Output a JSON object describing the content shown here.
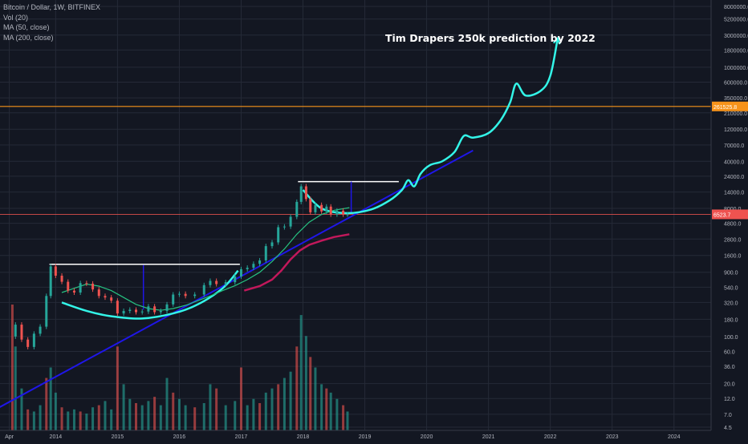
{
  "chart_data": {
    "type": "line",
    "title": "Bitcoin / Dollar, 1W, BITFINEX",
    "indicators": [
      "Vol (20)",
      "MA (50, close)",
      "MA (200, close)"
    ],
    "annotation": "Tim Drapers 250k prediction by 2022",
    "scale": "log",
    "ylim": [
      4.5,
      8000000
    ],
    "xlim": [
      2013.1,
      2024.6
    ],
    "x_tick_labels": [
      "Apr",
      "2014",
      "2015",
      "2016",
      "2017",
      "2018",
      "2019",
      "2020",
      "2021",
      "2022",
      "2023",
      "2024"
    ],
    "x_tick_values": [
      2013.25,
      2014,
      2015,
      2016,
      2017,
      2018,
      2019,
      2020,
      2021,
      2022,
      2023,
      2024
    ],
    "y_tick_labels": [
      "8000000.0",
      "5200000.0",
      "3000000.0",
      "1800000.0",
      "1000000.0",
      "600000.0",
      "350000.0",
      "210000.0",
      "120000.0",
      "70000.0",
      "40000.0",
      "24000.0",
      "14000.0",
      "8000.0",
      "4800.0",
      "2800.0",
      "1600.0",
      "900.0",
      "540.0",
      "320.0",
      "180.0",
      "100.0",
      "60.0",
      "36.0",
      "20.0",
      "12.0",
      "7.0",
      "4.5"
    ],
    "y_tick_values": [
      8000000,
      5200000,
      3000000,
      1800000,
      1000000,
      600000,
      350000,
      210000,
      120000,
      70000,
      40000,
      24000,
      14000,
      8000,
      4800,
      2800,
      1600,
      900,
      540,
      320,
      180,
      100,
      60,
      36,
      20,
      12,
      7,
      4.5
    ],
    "price_label": "6523.7",
    "price_value": 6523.7,
    "level_label": "261525.8",
    "level_value": 261525.8,
    "colors": {
      "background": "#131722",
      "grid": "#252a37",
      "up": "#26a69a",
      "down": "#ef5350",
      "ma50": "#26c281",
      "ma200": "#c2185b",
      "trend": "#1f16e8",
      "projection": "#33f5e8",
      "level": "#f7931a",
      "price": "#ef5350",
      "white": "#ffffff",
      "axis_text": "#b2b5be"
    },
    "series": [
      {
        "name": "Bitcoin / Dollar",
        "values": [
          [
            2013.3,
            100
          ],
          [
            2013.35,
            150
          ],
          [
            2013.45,
            90
          ],
          [
            2013.55,
            70
          ],
          [
            2013.65,
            110
          ],
          [
            2013.75,
            140
          ],
          [
            2013.85,
            400
          ],
          [
            2013.92,
            1100
          ],
          [
            2014.0,
            800
          ],
          [
            2014.1,
            650
          ],
          [
            2014.2,
            480
          ],
          [
            2014.3,
            450
          ],
          [
            2014.4,
            620
          ],
          [
            2014.5,
            610
          ],
          [
            2014.6,
            500
          ],
          [
            2014.7,
            400
          ],
          [
            2014.8,
            380
          ],
          [
            2014.9,
            340
          ],
          [
            2015.0,
            220
          ],
          [
            2015.1,
            240
          ],
          [
            2015.2,
            250
          ],
          [
            2015.3,
            230
          ],
          [
            2015.4,
            235
          ],
          [
            2015.5,
            280
          ],
          [
            2015.6,
            230
          ],
          [
            2015.7,
            240
          ],
          [
            2015.8,
            300
          ],
          [
            2015.9,
            420
          ],
          [
            2016.0,
            430
          ],
          [
            2016.1,
            400
          ],
          [
            2016.25,
            420
          ],
          [
            2016.4,
            580
          ],
          [
            2016.5,
            670
          ],
          [
            2016.6,
            600
          ],
          [
            2016.75,
            640
          ],
          [
            2016.9,
            780
          ],
          [
            2017.0,
            1000
          ],
          [
            2017.1,
            1050
          ],
          [
            2017.2,
            1200
          ],
          [
            2017.3,
            1350
          ],
          [
            2017.4,
            2200
          ],
          [
            2017.5,
            2500
          ],
          [
            2017.6,
            4200
          ],
          [
            2017.7,
            4300
          ],
          [
            2017.8,
            6000
          ],
          [
            2017.9,
            10000
          ],
          [
            2017.97,
            17000
          ],
          [
            2018.05,
            11000
          ],
          [
            2018.12,
            7000
          ],
          [
            2018.2,
            9000
          ],
          [
            2018.3,
            7200
          ],
          [
            2018.38,
            8500
          ],
          [
            2018.45,
            6500
          ],
          [
            2018.55,
            7400
          ],
          [
            2018.65,
            6500
          ],
          [
            2018.72,
            6523.7
          ]
        ]
      },
      {
        "name": "MA (50, close)",
        "values": [
          [
            2014.1,
            450
          ],
          [
            2014.3,
            520
          ],
          [
            2014.5,
            600
          ],
          [
            2014.7,
            560
          ],
          [
            2014.9,
            480
          ],
          [
            2015.1,
            380
          ],
          [
            2015.3,
            300
          ],
          [
            2015.5,
            260
          ],
          [
            2015.7,
            245
          ],
          [
            2015.9,
            260
          ],
          [
            2016.1,
            290
          ],
          [
            2016.3,
            340
          ],
          [
            2016.5,
            400
          ],
          [
            2016.7,
            480
          ],
          [
            2016.9,
            570
          ],
          [
            2017.1,
            700
          ],
          [
            2017.3,
            900
          ],
          [
            2017.5,
            1300
          ],
          [
            2017.7,
            2000
          ],
          [
            2017.9,
            3300
          ],
          [
            2018.1,
            5000
          ],
          [
            2018.3,
            6500
          ],
          [
            2018.5,
            7500
          ],
          [
            2018.75,
            8200
          ]
        ]
      },
      {
        "name": "MA (200, close)",
        "values": [
          [
            2017.05,
            480
          ],
          [
            2017.3,
            560
          ],
          [
            2017.5,
            700
          ],
          [
            2017.65,
            950
          ],
          [
            2017.8,
            1400
          ],
          [
            2017.95,
            1900
          ],
          [
            2018.1,
            2300
          ],
          [
            2018.3,
            2650
          ],
          [
            2018.5,
            3000
          ],
          [
            2018.75,
            3300
          ]
        ]
      }
    ],
    "volume": [
      {
        "x": 2013.3,
        "v": 60
      },
      {
        "x": 2013.35,
        "v": 40
      },
      {
        "x": 2013.45,
        "v": 20
      },
      {
        "x": 2013.55,
        "v": 10
      },
      {
        "x": 2013.65,
        "v": 9
      },
      {
        "x": 2013.75,
        "v": 12
      },
      {
        "x": 2013.85,
        "v": 25
      },
      {
        "x": 2013.92,
        "v": 30
      },
      {
        "x": 2014.0,
        "v": 18
      },
      {
        "x": 2014.1,
        "v": 11
      },
      {
        "x": 2014.2,
        "v": 9
      },
      {
        "x": 2014.3,
        "v": 10
      },
      {
        "x": 2014.4,
        "v": 9
      },
      {
        "x": 2014.5,
        "v": 8
      },
      {
        "x": 2014.6,
        "v": 11
      },
      {
        "x": 2014.7,
        "v": 12
      },
      {
        "x": 2014.8,
        "v": 14
      },
      {
        "x": 2014.9,
        "v": 10
      },
      {
        "x": 2015.0,
        "v": 40
      },
      {
        "x": 2015.1,
        "v": 22
      },
      {
        "x": 2015.2,
        "v": 15
      },
      {
        "x": 2015.3,
        "v": 13
      },
      {
        "x": 2015.4,
        "v": 12
      },
      {
        "x": 2015.5,
        "v": 14
      },
      {
        "x": 2015.6,
        "v": 16
      },
      {
        "x": 2015.7,
        "v": 12
      },
      {
        "x": 2015.8,
        "v": 25
      },
      {
        "x": 2015.9,
        "v": 18
      },
      {
        "x": 2016.0,
        "v": 15
      },
      {
        "x": 2016.1,
        "v": 12
      },
      {
        "x": 2016.25,
        "v": 11
      },
      {
        "x": 2016.4,
        "v": 13
      },
      {
        "x": 2016.5,
        "v": 22
      },
      {
        "x": 2016.6,
        "v": 20
      },
      {
        "x": 2016.75,
        "v": 12
      },
      {
        "x": 2016.9,
        "v": 14
      },
      {
        "x": 2017.0,
        "v": 30
      },
      {
        "x": 2017.1,
        "v": 12
      },
      {
        "x": 2017.2,
        "v": 15
      },
      {
        "x": 2017.3,
        "v": 13
      },
      {
        "x": 2017.4,
        "v": 18
      },
      {
        "x": 2017.5,
        "v": 20
      },
      {
        "x": 2017.6,
        "v": 22
      },
      {
        "x": 2017.7,
        "v": 25
      },
      {
        "x": 2017.8,
        "v": 28
      },
      {
        "x": 2017.9,
        "v": 40
      },
      {
        "x": 2017.97,
        "v": 55
      },
      {
        "x": 2018.05,
        "v": 45
      },
      {
        "x": 2018.12,
        "v": 35
      },
      {
        "x": 2018.2,
        "v": 30
      },
      {
        "x": 2018.3,
        "v": 22
      },
      {
        "x": 2018.38,
        "v": 20
      },
      {
        "x": 2018.45,
        "v": 18
      },
      {
        "x": 2018.55,
        "v": 15
      },
      {
        "x": 2018.65,
        "v": 12
      },
      {
        "x": 2018.72,
        "v": 9
      }
    ],
    "drawings": [
      {
        "type": "trendline",
        "color": "trend",
        "points": [
          [
            2013.0,
            8
          ],
          [
            2020.75,
            58000
          ]
        ]
      },
      {
        "type": "horizontal",
        "color": "white",
        "points": [
          [
            2013.9,
            1180
          ],
          [
            2016.98,
            1180
          ]
        ]
      },
      {
        "type": "horizontal",
        "color": "white",
        "points": [
          [
            2017.92,
            20000
          ],
          [
            2019.55,
            20000
          ]
        ]
      },
      {
        "type": "vertical",
        "color": "trend",
        "points": [
          [
            2015.42,
            1150
          ],
          [
            2015.42,
            250
          ]
        ]
      },
      {
        "type": "vertical",
        "color": "trend",
        "points": [
          [
            2018.78,
            20000
          ],
          [
            2018.78,
            7000
          ]
        ]
      },
      {
        "type": "curve",
        "color": "projection",
        "points": [
          [
            2014.1,
            320
          ],
          [
            2014.5,
            240
          ],
          [
            2014.9,
            200
          ],
          [
            2015.4,
            185
          ],
          [
            2015.9,
            220
          ],
          [
            2016.3,
            300
          ],
          [
            2016.7,
            520
          ],
          [
            2016.95,
            950
          ]
        ]
      },
      {
        "type": "curve",
        "color": "projection",
        "points": [
          [
            2018.0,
            15000
          ],
          [
            2018.3,
            8000
          ],
          [
            2018.7,
            6800
          ],
          [
            2019.1,
            7700
          ],
          [
            2019.4,
            10500
          ],
          [
            2019.6,
            15000
          ],
          [
            2019.7,
            21000
          ],
          [
            2019.8,
            17000
          ],
          [
            2019.9,
            26000
          ],
          [
            2020.05,
            35000
          ],
          [
            2020.25,
            40000
          ],
          [
            2020.45,
            55000
          ],
          [
            2020.6,
            95000
          ],
          [
            2020.75,
            90000
          ],
          [
            2021.0,
            105000
          ],
          [
            2021.2,
            165000
          ],
          [
            2021.35,
            300000
          ],
          [
            2021.45,
            570000
          ],
          [
            2021.6,
            380000
          ],
          [
            2021.85,
            450000
          ],
          [
            2022.0,
            750000
          ],
          [
            2022.12,
            2700000
          ]
        ]
      }
    ]
  }
}
